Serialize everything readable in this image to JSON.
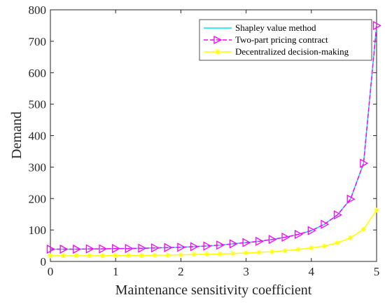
{
  "chart_data": {
    "type": "line",
    "title": "",
    "xlabel": "Maintenance sensitivity coefficient",
    "ylabel": "Demand",
    "xlim": [
      0,
      5
    ],
    "ylim": [
      0,
      800
    ],
    "xticks": [
      0,
      1,
      2,
      3,
      4,
      5
    ],
    "yticks": [
      0,
      100,
      200,
      300,
      400,
      500,
      600,
      700,
      800
    ],
    "grid": false,
    "legend_position": "top-right",
    "x": [
      0,
      0.2,
      0.4,
      0.6,
      0.8,
      1.0,
      1.2,
      1.4,
      1.6,
      1.8,
      2.0,
      2.2,
      2.4,
      2.6,
      2.8,
      3.0,
      3.2,
      3.4,
      3.6,
      3.8,
      4.0,
      4.2,
      4.4,
      4.6,
      4.8,
      5.0
    ],
    "series": [
      {
        "name": "Shapley value method",
        "color": "#00e5ee",
        "line_style": "solid",
        "marker": "none",
        "values": [
          39,
          39,
          39,
          40,
          40,
          41,
          41,
          42,
          43,
          44,
          45,
          47,
          49,
          52,
          56,
          60,
          64,
          70,
          77,
          86,
          98,
          118,
          148,
          198,
          312,
          750
        ]
      },
      {
        "name": "Two-part pricing contract",
        "color": "#ff00ff",
        "line_style": "dashed",
        "marker": "triangle-right",
        "values": [
          39,
          39,
          39,
          40,
          40,
          41,
          41,
          42,
          43,
          44,
          45,
          47,
          49,
          52,
          56,
          60,
          64,
          70,
          77,
          86,
          98,
          118,
          148,
          198,
          312,
          750
        ]
      },
      {
        "name": "Decentralized decision-making",
        "color": "#ffff00",
        "line_style": "solid",
        "marker": "asterisk",
        "values": [
          18,
          18,
          18,
          18,
          18,
          19,
          19,
          19,
          20,
          20,
          21,
          22,
          23,
          24,
          25,
          27,
          29,
          31,
          34,
          38,
          43,
          49,
          59,
          75,
          102,
          163
        ]
      }
    ]
  }
}
